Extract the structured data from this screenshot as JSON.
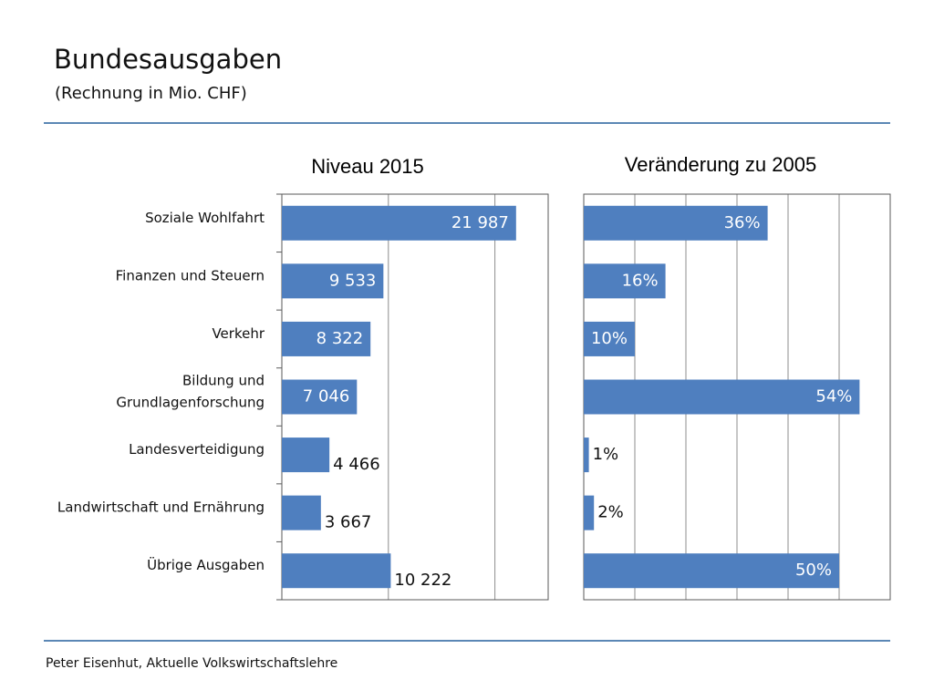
{
  "slide": {
    "title": "Bundesausgaben",
    "subtitle": "(Rechnung in Mio. CHF)",
    "footer": "Peter Eisenhut, Aktuelle Volkswirtschaftslehre"
  },
  "colors": {
    "bar": "#4f7fbf",
    "rule": "#5b87b5",
    "grid": "#7f7f7f"
  },
  "chart_data": [
    {
      "type": "bar",
      "orientation": "horizontal",
      "title": "Niveau 2015",
      "categories": [
        "Soziale Wohlfahrt",
        "Finanzen und Steuern",
        "Verkehr",
        "Bildung und Grundlagenforschung",
        "Landesverteidigung",
        "Landwirtschaft und Ernährung",
        "Übrige Ausgaben"
      ],
      "category_lines": [
        [
          "Soziale Wohlfahrt"
        ],
        [
          "Finanzen und Steuern"
        ],
        [
          "Verkehr"
        ],
        [
          "Bildung und",
          "Grundlagenforschung"
        ],
        [
          "Landesverteidigung"
        ],
        [
          "Landwirtschaft und Ernährung"
        ],
        [
          "Übrige Ausgaben"
        ]
      ],
      "values": [
        21987,
        9533,
        8322,
        7046,
        4466,
        3667,
        10222
      ],
      "data_labels": [
        "21 987",
        "9 533",
        "8 322",
        "7 046",
        "4 466",
        "3 667",
        "10 222"
      ],
      "label_inside": [
        true,
        true,
        true,
        true,
        false,
        false,
        false
      ],
      "xlim": [
        0,
        25000
      ],
      "gridlines": [
        10000,
        20000
      ],
      "grid": true
    },
    {
      "type": "bar",
      "orientation": "horizontal",
      "title": "Veränderung zu 2005",
      "values": [
        36,
        16,
        10,
        54,
        1,
        2,
        50
      ],
      "data_labels": [
        "36%",
        "16%",
        "10%",
        "54%",
        "1%",
        "2%",
        "50%"
      ],
      "label_inside": [
        true,
        true,
        true,
        true,
        false,
        false,
        true
      ],
      "xlim": [
        0,
        60
      ],
      "gridlines": [
        10,
        20,
        30,
        40,
        50
      ],
      "grid": true
    }
  ]
}
